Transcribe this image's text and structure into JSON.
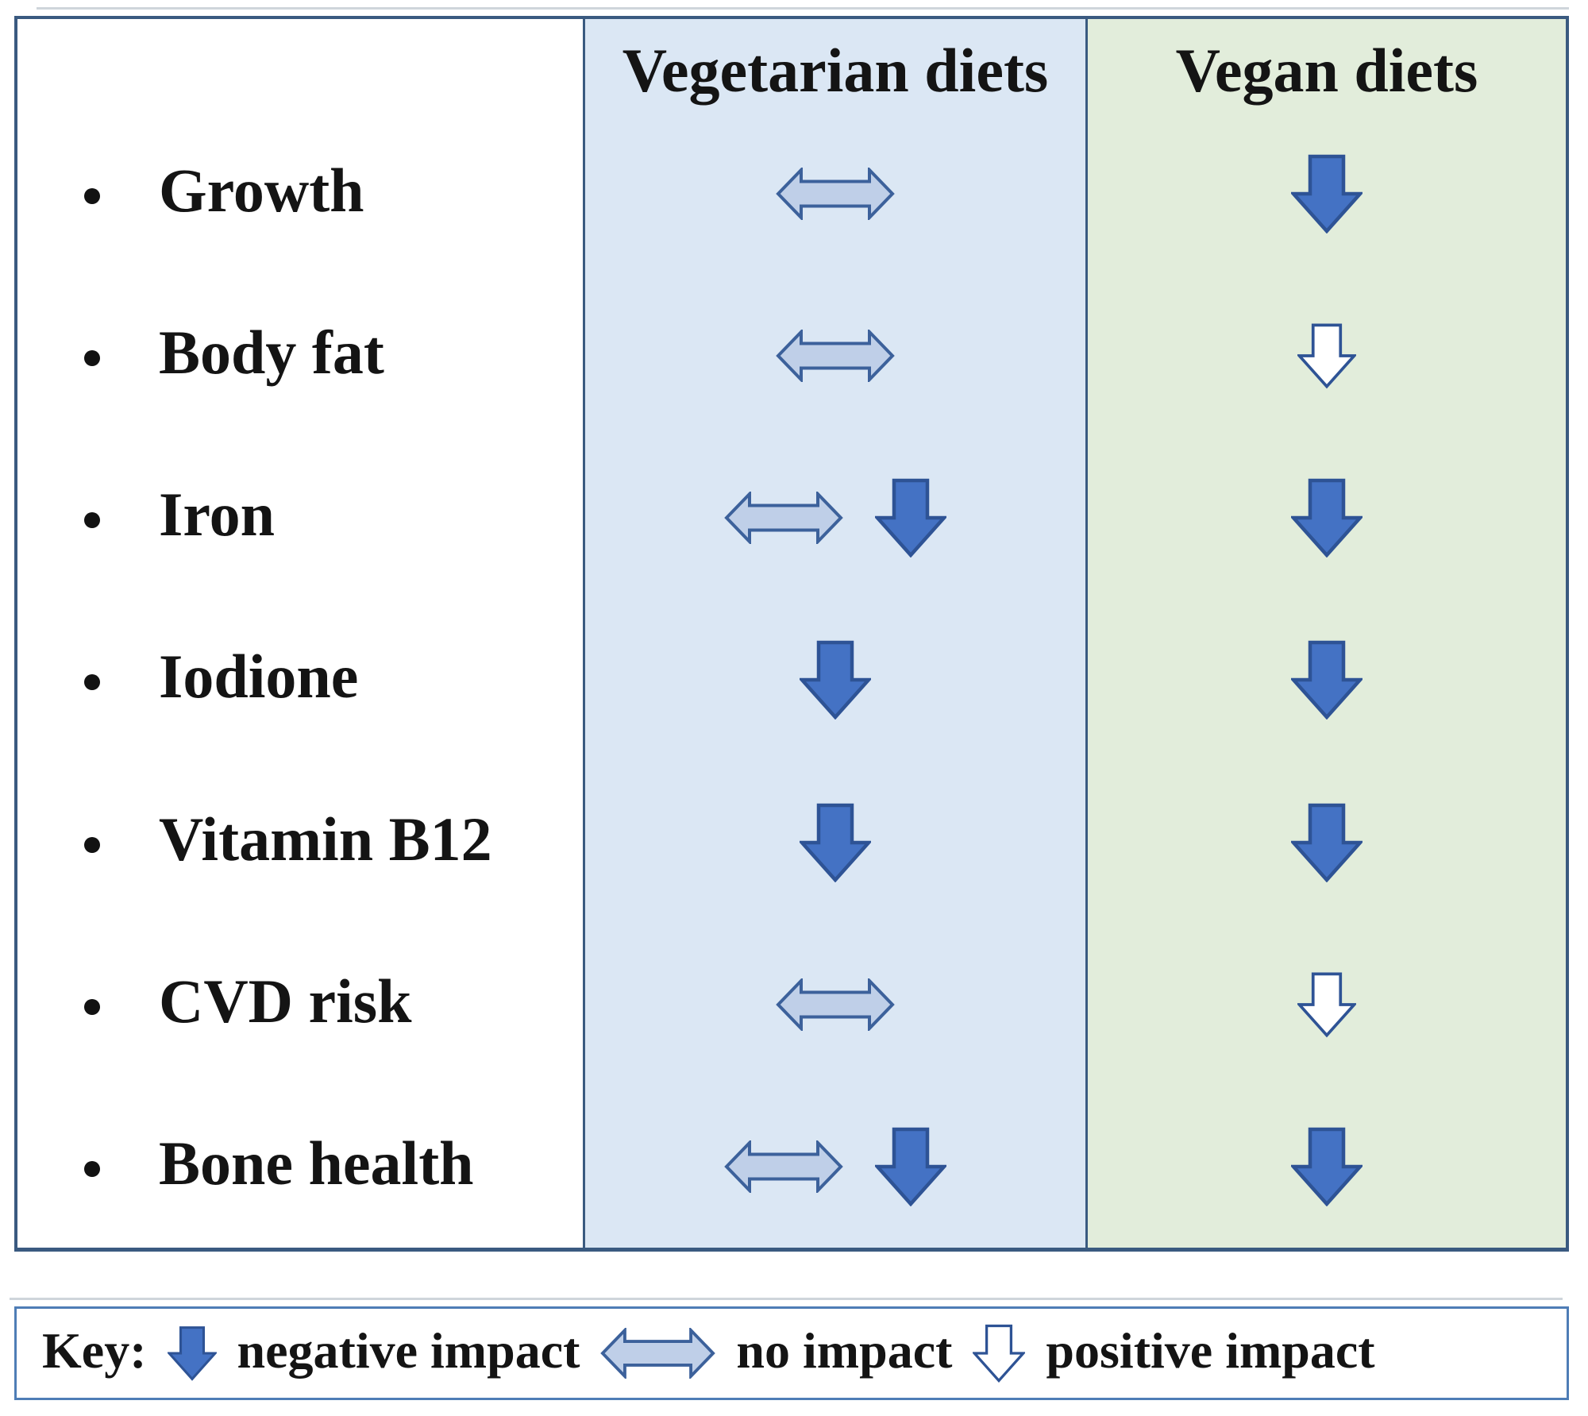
{
  "table": {
    "columns": [
      {
        "key": "vegetarian",
        "label": "Vegetarian diets"
      },
      {
        "key": "vegan",
        "label": "Vegan diets"
      }
    ],
    "rows": [
      {
        "label": "Growth",
        "vegetarian": [
          "no-impact"
        ],
        "vegan": [
          "negative"
        ]
      },
      {
        "label": "Body fat",
        "vegetarian": [
          "no-impact"
        ],
        "vegan": [
          "positive"
        ]
      },
      {
        "label": "Iron",
        "vegetarian": [
          "no-impact",
          "negative"
        ],
        "vegan": [
          "negative"
        ]
      },
      {
        "label": "Iodione",
        "vegetarian": [
          "negative"
        ],
        "vegan": [
          "negative"
        ]
      },
      {
        "label": "Vitamin B12",
        "vegetarian": [
          "negative"
        ],
        "vegan": [
          "negative"
        ]
      },
      {
        "label": "CVD risk",
        "vegetarian": [
          "no-impact"
        ],
        "vegan": [
          "positive"
        ]
      },
      {
        "label": "Bone health",
        "vegetarian": [
          "no-impact",
          "negative"
        ],
        "vegan": [
          "negative"
        ]
      }
    ]
  },
  "key": {
    "label": "Key:",
    "items": [
      {
        "symbol": "negative",
        "text": "negative impact"
      },
      {
        "symbol": "no-impact",
        "text": "no impact"
      },
      {
        "symbol": "positive",
        "text": "positive impact"
      }
    ]
  },
  "symbols": {
    "negative": {
      "meaning": "negative impact",
      "shape": "solid blue down block arrow"
    },
    "no-impact": {
      "meaning": "no impact",
      "shape": "light blue left-right block arrow"
    },
    "positive": {
      "meaning": "positive impact",
      "shape": "white outlined down block arrow"
    }
  },
  "colors": {
    "table_border": "#3A5A80",
    "key_border": "#4E7DB6",
    "vegetarian_column_bg": "#DBE7F4",
    "vegan_column_bg": "#E2EDDB",
    "negative_arrow_fill": "#4472C4",
    "negative_arrow_stroke": "#2E5395",
    "no_impact_arrow_fill": "#BFCFE8",
    "no_impact_arrow_stroke": "#3C619B",
    "positive_arrow_fill": "#FFFFFF",
    "positive_arrow_stroke": "#2E5395",
    "text": "#141414"
  }
}
